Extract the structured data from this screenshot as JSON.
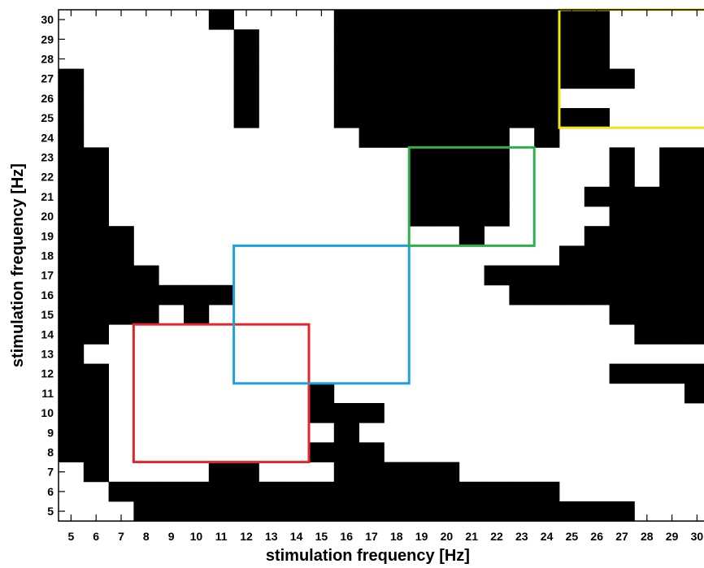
{
  "chart_data": {
    "type": "heatmap",
    "title": "",
    "xlabel": "stimulation frequency [Hz]",
    "ylabel": "stimulation frequency [Hz]",
    "x_ticks": [
      5,
      6,
      7,
      8,
      9,
      10,
      11,
      12,
      13,
      14,
      15,
      16,
      17,
      18,
      19,
      20,
      21,
      22,
      23,
      24,
      25,
      26,
      27,
      28,
      29,
      30
    ],
    "y_ticks": [
      5,
      6,
      7,
      8,
      9,
      10,
      11,
      12,
      13,
      14,
      15,
      16,
      17,
      18,
      19,
      20,
      21,
      22,
      23,
      24,
      25,
      26,
      27,
      28,
      29,
      30
    ],
    "xlim": [
      4.5,
      30.5
    ],
    "ylim": [
      4.5,
      30.5
    ],
    "colors": {
      "black": "#000000",
      "white": "#ffffff"
    },
    "cells_note": "rows listed from y=30 down to y=5; each character corresponds to x=5..30; '1' = black, '0' = white",
    "cells_rows": [
      "00000010000111111111110000",
      "00000001000111111111110000",
      "00000001000111111111110000",
      "10000001000111111111111000",
      "10000001000111111111000000",
      "10000001000111111111110000",
      "10000000000011111101000000",
      "11000000000000111100001011",
      "11000000000000111100001011",
      "11000000000000111100011111",
      "11000000000000111100001111",
      "11100000000000001000011111",
      "11100000000000000000111111",
      "11110000000000000111111111",
      "11111110000000000011111111",
      "11110100000000000000001111",
      "11000000000000000000000111",
      "10000000000000000000000000",
      "11000000000000000000001111",
      "11000000001000000000000001",
      "11000000001110000000000000",
      "11000000000100000000000000",
      "11000000001110000000000000",
      "01000011000111110000000000",
      "00111111111111111111000000",
      "00011111111111111111111000"
    ],
    "highlight_boxes": [
      {
        "color": "#e3262b",
        "x_range": [
          7.5,
          14.5
        ],
        "y_range": [
          7.5,
          14.5
        ]
      },
      {
        "color": "#1ea0dc",
        "x_range": [
          11.5,
          18.5
        ],
        "y_range": [
          11.5,
          18.5
        ]
      },
      {
        "color": "#2fae4a",
        "x_range": [
          18.5,
          23.5
        ],
        "y_range": [
          18.5,
          23.5
        ]
      },
      {
        "color": "#f2e21b",
        "x_range": [
          24.5,
          30.5
        ],
        "y_range": [
          24.5,
          30.5
        ]
      }
    ]
  }
}
